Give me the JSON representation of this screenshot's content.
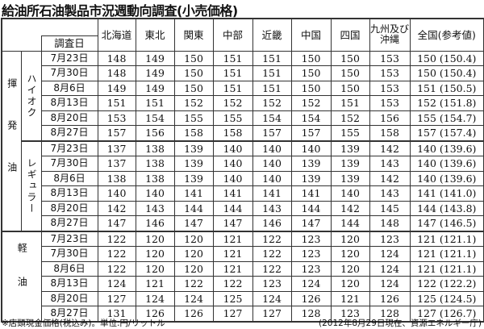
{
  "title": "給油所石油製品市況週動向調査(小売価格)",
  "headers": {
    "date": "調査日",
    "regions": [
      "北海道",
      "東北",
      "関東",
      "中部",
      "近畿",
      "中国",
      "四国",
      "九州及び沖縄",
      "全国(参考値)"
    ]
  },
  "groups": [
    {
      "label": "揮発油",
      "subgroups": [
        {
          "label": "ハイオク",
          "rows": [
            {
              "date": "7月23日",
              "values": [
                "148",
                "149",
                "150",
                "151",
                "151",
                "150",
                "150",
                "153",
                "150 (150.4)"
              ]
            },
            {
              "date": "7月30日",
              "values": [
                "148",
                "149",
                "150",
                "151",
                "151",
                "150",
                "150",
                "153",
                "150 (150.4)"
              ]
            },
            {
              "date": "8月6日",
              "values": [
                "149",
                "149",
                "150",
                "151",
                "151",
                "150",
                "150",
                "153",
                "151 (150.5)"
              ]
            },
            {
              "date": "8月13日",
              "values": [
                "151",
                "151",
                "152",
                "152",
                "152",
                "152",
                "151",
                "153",
                "152 (151.8)"
              ]
            },
            {
              "date": "8月20日",
              "values": [
                "153",
                "154",
                "155",
                "155",
                "154",
                "154",
                "152",
                "156",
                "155 (154.7)"
              ]
            },
            {
              "date": "8月27日",
              "values": [
                "157",
                "156",
                "158",
                "158",
                "157",
                "157",
                "155",
                "158",
                "157 (157.4)"
              ]
            }
          ]
        },
        {
          "label": "レギュラー",
          "rows": [
            {
              "date": "7月23日",
              "values": [
                "137",
                "138",
                "139",
                "140",
                "140",
                "140",
                "139",
                "142",
                "140 (139.6)"
              ]
            },
            {
              "date": "7月30日",
              "values": [
                "137",
                "138",
                "139",
                "140",
                "140",
                "139",
                "139",
                "143",
                "140 (139.6)"
              ]
            },
            {
              "date": "8月6日",
              "values": [
                "138",
                "138",
                "139",
                "140",
                "140",
                "139",
                "139",
                "142",
                "140 (139.6)"
              ]
            },
            {
              "date": "8月13日",
              "values": [
                "140",
                "140",
                "141",
                "141",
                "141",
                "141",
                "140",
                "143",
                "141 (141.0)"
              ]
            },
            {
              "date": "8月20日",
              "values": [
                "142",
                "143",
                "144",
                "144",
                "143",
                "144",
                "142",
                "145",
                "144 (143.8)"
              ]
            },
            {
              "date": "8月27日",
              "values": [
                "147",
                "146",
                "147",
                "147",
                "146",
                "147",
                "144",
                "148",
                "147 (146.5)"
              ]
            }
          ]
        }
      ]
    },
    {
      "label": "軽油",
      "subgroups": [
        {
          "label": "",
          "rows": [
            {
              "date": "7月23日",
              "values": [
                "122",
                "120",
                "120",
                "121",
                "122",
                "123",
                "120",
                "123",
                "121 (121.1)"
              ]
            },
            {
              "date": "7月30日",
              "values": [
                "122",
                "120",
                "120",
                "121",
                "122",
                "123",
                "120",
                "124",
                "121 (121.1)"
              ]
            },
            {
              "date": "8月6日",
              "values": [
                "122",
                "120",
                "120",
                "121",
                "122",
                "123",
                "120",
                "124",
                "121 (121.1)"
              ]
            },
            {
              "date": "8月13日",
              "values": [
                "124",
                "121",
                "122",
                "122",
                "123",
                "124",
                "120",
                "124",
                "122 (122.2)"
              ]
            },
            {
              "date": "8月20日",
              "values": [
                "127",
                "124",
                "124",
                "125",
                "124",
                "126",
                "121",
                "126",
                "125 (124.5)"
              ]
            },
            {
              "date": "8月27日",
              "values": [
                "131",
                "126",
                "126",
                "127",
                "127",
                "128",
                "123",
                "128",
                "127 (126.7)"
              ]
            }
          ]
        }
      ]
    }
  ],
  "note": "※店頭現金価格(税込み)。単位:円/リットル",
  "source": "(2012年8月29日現在、資源エネルギー庁)"
}
